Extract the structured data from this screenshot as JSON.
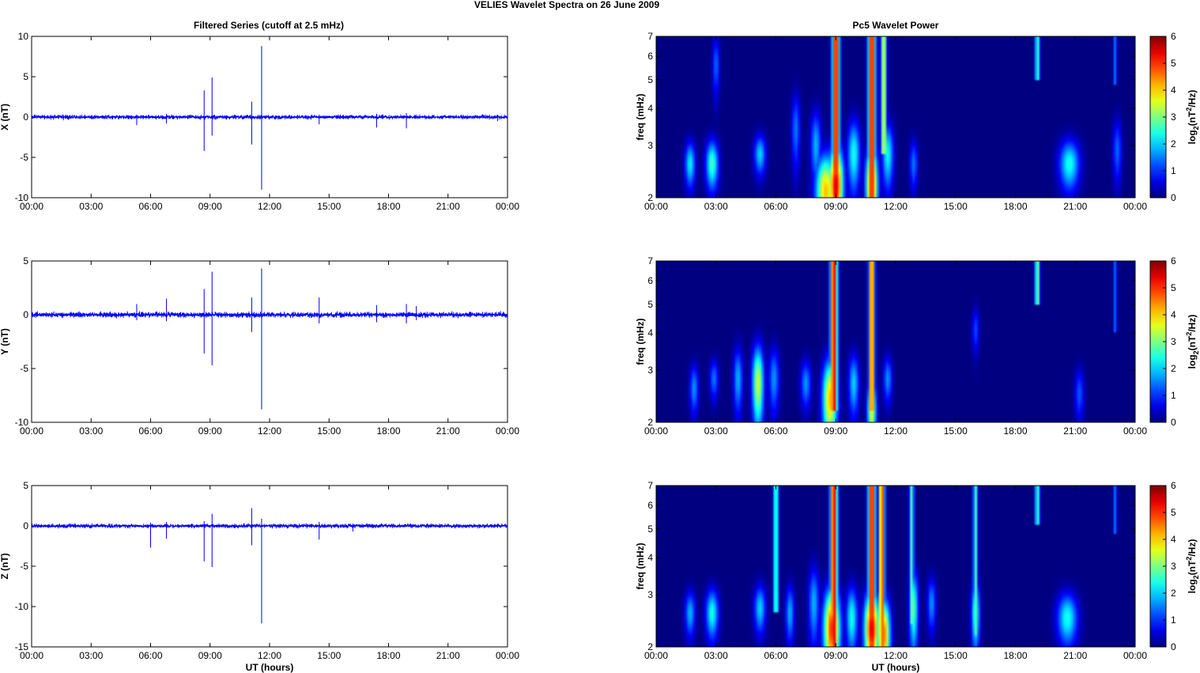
{
  "figure": {
    "suptitle": "VELIES Wavelet Spectra on 26 June      2009",
    "left_title": "Filtered Series (cutoff at 2.5 mHz)",
    "right_title": "Pc5 Wavelet Power",
    "xlabel": "UT (hours)"
  },
  "colors": {
    "trace": "#0000ff",
    "background": "#ffffff",
    "colormap": "jet"
  },
  "chart_data": [
    {
      "type": "line",
      "panel": "X-series",
      "ylabel": "X (nT)",
      "ylim": [
        -10,
        10
      ],
      "yticks": [
        "10",
        "5",
        "0",
        "-5",
        "-10"
      ],
      "xlim": [
        0,
        24
      ],
      "xticks": [
        "00:00",
        "03:00",
        "06:00",
        "09:00",
        "12:00",
        "15:00",
        "18:00",
        "21:00",
        "00:00"
      ],
      "baseline_noise_nT": 0.25,
      "spikes": [
        {
          "t": 1.6,
          "lo": -0.4,
          "hi": 0.3
        },
        {
          "t": 5.3,
          "lo": -1.0,
          "hi": 0.3
        },
        {
          "t": 6.8,
          "lo": -0.8,
          "hi": 0.4
        },
        {
          "t": 8.7,
          "lo": -4.2,
          "hi": 3.3
        },
        {
          "t": 9.1,
          "lo": -2.3,
          "hi": 4.9
        },
        {
          "t": 11.1,
          "lo": -3.4,
          "hi": 1.9
        },
        {
          "t": 11.6,
          "lo": -9.0,
          "hi": 8.8
        },
        {
          "t": 14.5,
          "lo": -0.9,
          "hi": 0.3
        },
        {
          "t": 17.4,
          "lo": -1.3,
          "hi": 0.4
        },
        {
          "t": 18.9,
          "lo": -1.4,
          "hi": 0.5
        },
        {
          "t": 23.5,
          "lo": -0.5,
          "hi": 0.3
        }
      ]
    },
    {
      "type": "line",
      "panel": "Y-series",
      "ylabel": "Y (nT)",
      "ylim": [
        -10,
        5
      ],
      "yticks": [
        "5",
        "0",
        "-5",
        "-10"
      ],
      "xlim": [
        0,
        24
      ],
      "xticks": [
        "00:00",
        "03:00",
        "06:00",
        "09:00",
        "12:00",
        "15:00",
        "18:00",
        "21:00",
        "00:00"
      ],
      "baseline_noise_nT": 0.25,
      "spikes": [
        {
          "t": 5.3,
          "lo": -0.5,
          "hi": 1.0
        },
        {
          "t": 6.8,
          "lo": -0.6,
          "hi": 1.5
        },
        {
          "t": 8.7,
          "lo": -3.6,
          "hi": 2.4
        },
        {
          "t": 9.1,
          "lo": -4.7,
          "hi": 4.0
        },
        {
          "t": 11.1,
          "lo": -1.6,
          "hi": 1.6
        },
        {
          "t": 11.6,
          "lo": -8.8,
          "hi": 4.3
        },
        {
          "t": 14.5,
          "lo": -0.8,
          "hi": 1.6
        },
        {
          "t": 17.4,
          "lo": -0.7,
          "hi": 0.9
        },
        {
          "t": 18.9,
          "lo": -0.8,
          "hi": 1.0
        },
        {
          "t": 19.4,
          "lo": -0.5,
          "hi": 0.8
        }
      ]
    },
    {
      "type": "line",
      "panel": "Z-series",
      "ylabel": "Z (nT)",
      "ylim": [
        -15,
        5
      ],
      "yticks": [
        "5",
        "0",
        "-5",
        "-10",
        "-15"
      ],
      "xlim": [
        0,
        24
      ],
      "xticks": [
        "00:00",
        "03:00",
        "06:00",
        "09:00",
        "12:00",
        "15:00",
        "18:00",
        "21:00",
        "00:00"
      ],
      "xlabel": "UT (hours)",
      "baseline_noise_nT": 0.25,
      "spikes": [
        {
          "t": 6.0,
          "lo": -2.7,
          "hi": 0.4
        },
        {
          "t": 6.8,
          "lo": -1.6,
          "hi": 0.5
        },
        {
          "t": 8.7,
          "lo": -4.4,
          "hi": 0.6
        },
        {
          "t": 9.1,
          "lo": -5.1,
          "hi": 1.5
        },
        {
          "t": 11.1,
          "lo": -2.4,
          "hi": 2.2
        },
        {
          "t": 11.6,
          "lo": -12.1,
          "hi": 0.9
        },
        {
          "t": 14.5,
          "lo": -1.7,
          "hi": 0.5
        },
        {
          "t": 16.2,
          "lo": -0.7,
          "hi": 0.3
        }
      ]
    },
    {
      "type": "heatmap",
      "panel": "X-power",
      "ylabel": "freq (mHz)",
      "ylim": [
        2,
        7
      ],
      "yticks": [
        "7",
        "6",
        "5",
        "4",
        "3",
        "2"
      ],
      "xlim": [
        0,
        24
      ],
      "xticks": [
        "00:00",
        "03:00",
        "06:00",
        "09:00",
        "12:00",
        "15:00",
        "18:00",
        "21:00",
        "00:00"
      ],
      "colorbar_label": "log2(nT^2/Hz)",
      "colorbar_ticks": [
        "6",
        "5",
        "4",
        "3",
        "2",
        "1",
        "0"
      ],
      "clim": [
        0,
        6
      ],
      "blobs": [
        {
          "t": 1.7,
          "f": 2.6,
          "v": 2.4,
          "wt": 0.18,
          "wf": 0.32
        },
        {
          "t": 2.8,
          "f": 2.6,
          "v": 2.9,
          "wt": 0.22,
          "wf": 0.35
        },
        {
          "t": 3.0,
          "f": 5.6,
          "v": 1.5,
          "wt": 0.12,
          "wf": 0.9
        },
        {
          "t": 5.2,
          "f": 2.8,
          "v": 2.2,
          "wt": 0.2,
          "wf": 0.3
        },
        {
          "t": 7.0,
          "f": 3.4,
          "v": 1.6,
          "wt": 0.15,
          "wf": 0.7
        },
        {
          "t": 8.0,
          "f": 3.0,
          "v": 2.0,
          "wt": 0.18,
          "wf": 0.6
        },
        {
          "t": 8.5,
          "f": 2.1,
          "v": 4.5,
          "wt": 0.35,
          "wf": 0.45
        },
        {
          "t": 9.0,
          "f": 2.2,
          "v": 6.0,
          "wt": 0.25,
          "wf": 0.5
        },
        {
          "t": 9.9,
          "f": 2.8,
          "v": 2.6,
          "wt": 0.22,
          "wf": 0.55
        },
        {
          "t": 10.8,
          "f": 2.2,
          "v": 5.5,
          "wt": 0.2,
          "wf": 0.5
        },
        {
          "t": 11.6,
          "f": 2.8,
          "v": 2.5,
          "wt": 0.2,
          "wf": 0.5
        },
        {
          "t": 12.9,
          "f": 2.6,
          "v": 1.6,
          "wt": 0.14,
          "wf": 0.35
        },
        {
          "t": 20.7,
          "f": 2.6,
          "v": 2.6,
          "wt": 0.35,
          "wf": 0.35
        },
        {
          "t": 23.1,
          "f": 2.9,
          "v": 1.5,
          "wt": 0.15,
          "wf": 0.5
        }
      ],
      "streaks": [
        {
          "t": 9.0,
          "f_lo": 2.0,
          "v": 6.0,
          "w": 0.12
        },
        {
          "t": 10.8,
          "f_lo": 2.0,
          "v": 6.0,
          "w": 0.12
        },
        {
          "t": 11.4,
          "f_lo": 2.8,
          "v": 4.0,
          "w": 0.1
        },
        {
          "t": 19.1,
          "f_lo": 5.0,
          "v": 3.0,
          "w": 0.08
        },
        {
          "t": 23.0,
          "f_lo": 4.8,
          "v": 1.6,
          "w": 0.06
        }
      ]
    },
    {
      "type": "heatmap",
      "panel": "Y-power",
      "ylabel": "freq (mHz)",
      "ylim": [
        2,
        7
      ],
      "yticks": [
        "7",
        "6",
        "5",
        "4",
        "3",
        "2"
      ],
      "xlim": [
        0,
        24
      ],
      "xticks": [
        "00:00",
        "03:00",
        "06:00",
        "09:00",
        "12:00",
        "15:00",
        "18:00",
        "21:00",
        "00:00"
      ],
      "colorbar_label": "log2(nT^2/Hz)",
      "colorbar_ticks": [
        "6",
        "5",
        "4",
        "3",
        "2",
        "1",
        "0"
      ],
      "clim": [
        0,
        6
      ],
      "blobs": [
        {
          "t": 1.9,
          "f": 2.6,
          "v": 1.8,
          "wt": 0.15,
          "wf": 0.35
        },
        {
          "t": 2.9,
          "f": 2.8,
          "v": 1.6,
          "wt": 0.15,
          "wf": 0.3
        },
        {
          "t": 4.1,
          "f": 2.8,
          "v": 2.0,
          "wt": 0.16,
          "wf": 0.5
        },
        {
          "t": 5.1,
          "f": 2.7,
          "v": 3.8,
          "wt": 0.2,
          "wf": 0.6
        },
        {
          "t": 5.9,
          "f": 2.8,
          "v": 1.8,
          "wt": 0.18,
          "wf": 0.5
        },
        {
          "t": 7.5,
          "f": 2.7,
          "v": 1.8,
          "wt": 0.18,
          "wf": 0.35
        },
        {
          "t": 8.7,
          "f": 2.4,
          "v": 4.5,
          "wt": 0.25,
          "wf": 0.55
        },
        {
          "t": 9.9,
          "f": 2.7,
          "v": 2.2,
          "wt": 0.18,
          "wf": 0.45
        },
        {
          "t": 10.8,
          "f": 2.2,
          "v": 4.0,
          "wt": 0.15,
          "wf": 0.4
        },
        {
          "t": 11.6,
          "f": 2.8,
          "v": 1.8,
          "wt": 0.15,
          "wf": 0.35
        },
        {
          "t": 16.0,
          "f": 4.1,
          "v": 1.3,
          "wt": 0.12,
          "wf": 0.5
        },
        {
          "t": 21.2,
          "f": 2.5,
          "v": 1.4,
          "wt": 0.16,
          "wf": 0.35
        }
      ],
      "streaks": [
        {
          "t": 8.9,
          "f_lo": 2.2,
          "v": 6.0,
          "w": 0.12
        },
        {
          "t": 10.8,
          "f_lo": 2.2,
          "v": 5.5,
          "w": 0.1
        },
        {
          "t": 19.1,
          "f_lo": 5.0,
          "v": 3.5,
          "w": 0.08
        },
        {
          "t": 23.0,
          "f_lo": 4.0,
          "v": 1.5,
          "w": 0.06
        }
      ]
    },
    {
      "type": "heatmap",
      "panel": "Z-power",
      "ylabel": "freq (mHz)",
      "ylim": [
        2,
        7
      ],
      "yticks": [
        "7",
        "6",
        "5",
        "4",
        "3",
        "2"
      ],
      "xlim": [
        0,
        24
      ],
      "xticks": [
        "00:00",
        "03:00",
        "06:00",
        "09:00",
        "12:00",
        "15:00",
        "18:00",
        "21:00",
        "00:00"
      ],
      "xlabel": "UT (hours)",
      "colorbar_label": "log2(nT^2/Hz)",
      "colorbar_ticks": [
        "6",
        "5",
        "4",
        "3",
        "2",
        "1",
        "0"
      ],
      "clim": [
        0,
        6
      ],
      "blobs": [
        {
          "t": 1.7,
          "f": 2.6,
          "v": 2.0,
          "wt": 0.18,
          "wf": 0.32
        },
        {
          "t": 2.8,
          "f": 2.6,
          "v": 2.6,
          "wt": 0.22,
          "wf": 0.35
        },
        {
          "t": 5.2,
          "f": 2.7,
          "v": 2.2,
          "wt": 0.2,
          "wf": 0.35
        },
        {
          "t": 6.7,
          "f": 2.6,
          "v": 2.0,
          "wt": 0.15,
          "wf": 0.4
        },
        {
          "t": 7.9,
          "f": 2.8,
          "v": 2.0,
          "wt": 0.18,
          "wf": 0.6
        },
        {
          "t": 8.8,
          "f": 2.3,
          "v": 5.5,
          "wt": 0.28,
          "wf": 0.55
        },
        {
          "t": 9.8,
          "f": 2.5,
          "v": 2.6,
          "wt": 0.2,
          "wf": 0.45
        },
        {
          "t": 10.8,
          "f": 2.3,
          "v": 6.0,
          "wt": 0.25,
          "wf": 0.5
        },
        {
          "t": 11.4,
          "f": 2.2,
          "v": 5.0,
          "wt": 0.22,
          "wf": 0.45
        },
        {
          "t": 12.9,
          "f": 2.7,
          "v": 3.0,
          "wt": 0.15,
          "wf": 0.6
        },
        {
          "t": 13.8,
          "f": 2.8,
          "v": 1.8,
          "wt": 0.15,
          "wf": 0.4
        },
        {
          "t": 16.0,
          "f": 2.6,
          "v": 3.0,
          "wt": 0.14,
          "wf": 0.5
        },
        {
          "t": 20.6,
          "f": 2.5,
          "v": 2.6,
          "wt": 0.35,
          "wf": 0.35
        }
      ],
      "streaks": [
        {
          "t": 6.0,
          "f_lo": 2.6,
          "v": 3.2,
          "w": 0.08
        },
        {
          "t": 8.9,
          "f_lo": 2.0,
          "v": 6.0,
          "w": 0.12
        },
        {
          "t": 10.8,
          "f_lo": 2.0,
          "v": 6.0,
          "w": 0.12
        },
        {
          "t": 11.3,
          "f_lo": 2.0,
          "v": 5.5,
          "w": 0.1
        },
        {
          "t": 12.8,
          "f_lo": 2.4,
          "v": 3.0,
          "w": 0.08
        },
        {
          "t": 16.0,
          "f_lo": 2.2,
          "v": 3.0,
          "w": 0.08
        },
        {
          "t": 19.1,
          "f_lo": 5.2,
          "v": 3.0,
          "w": 0.08
        },
        {
          "t": 23.0,
          "f_lo": 4.8,
          "v": 1.6,
          "w": 0.06
        }
      ]
    }
  ]
}
